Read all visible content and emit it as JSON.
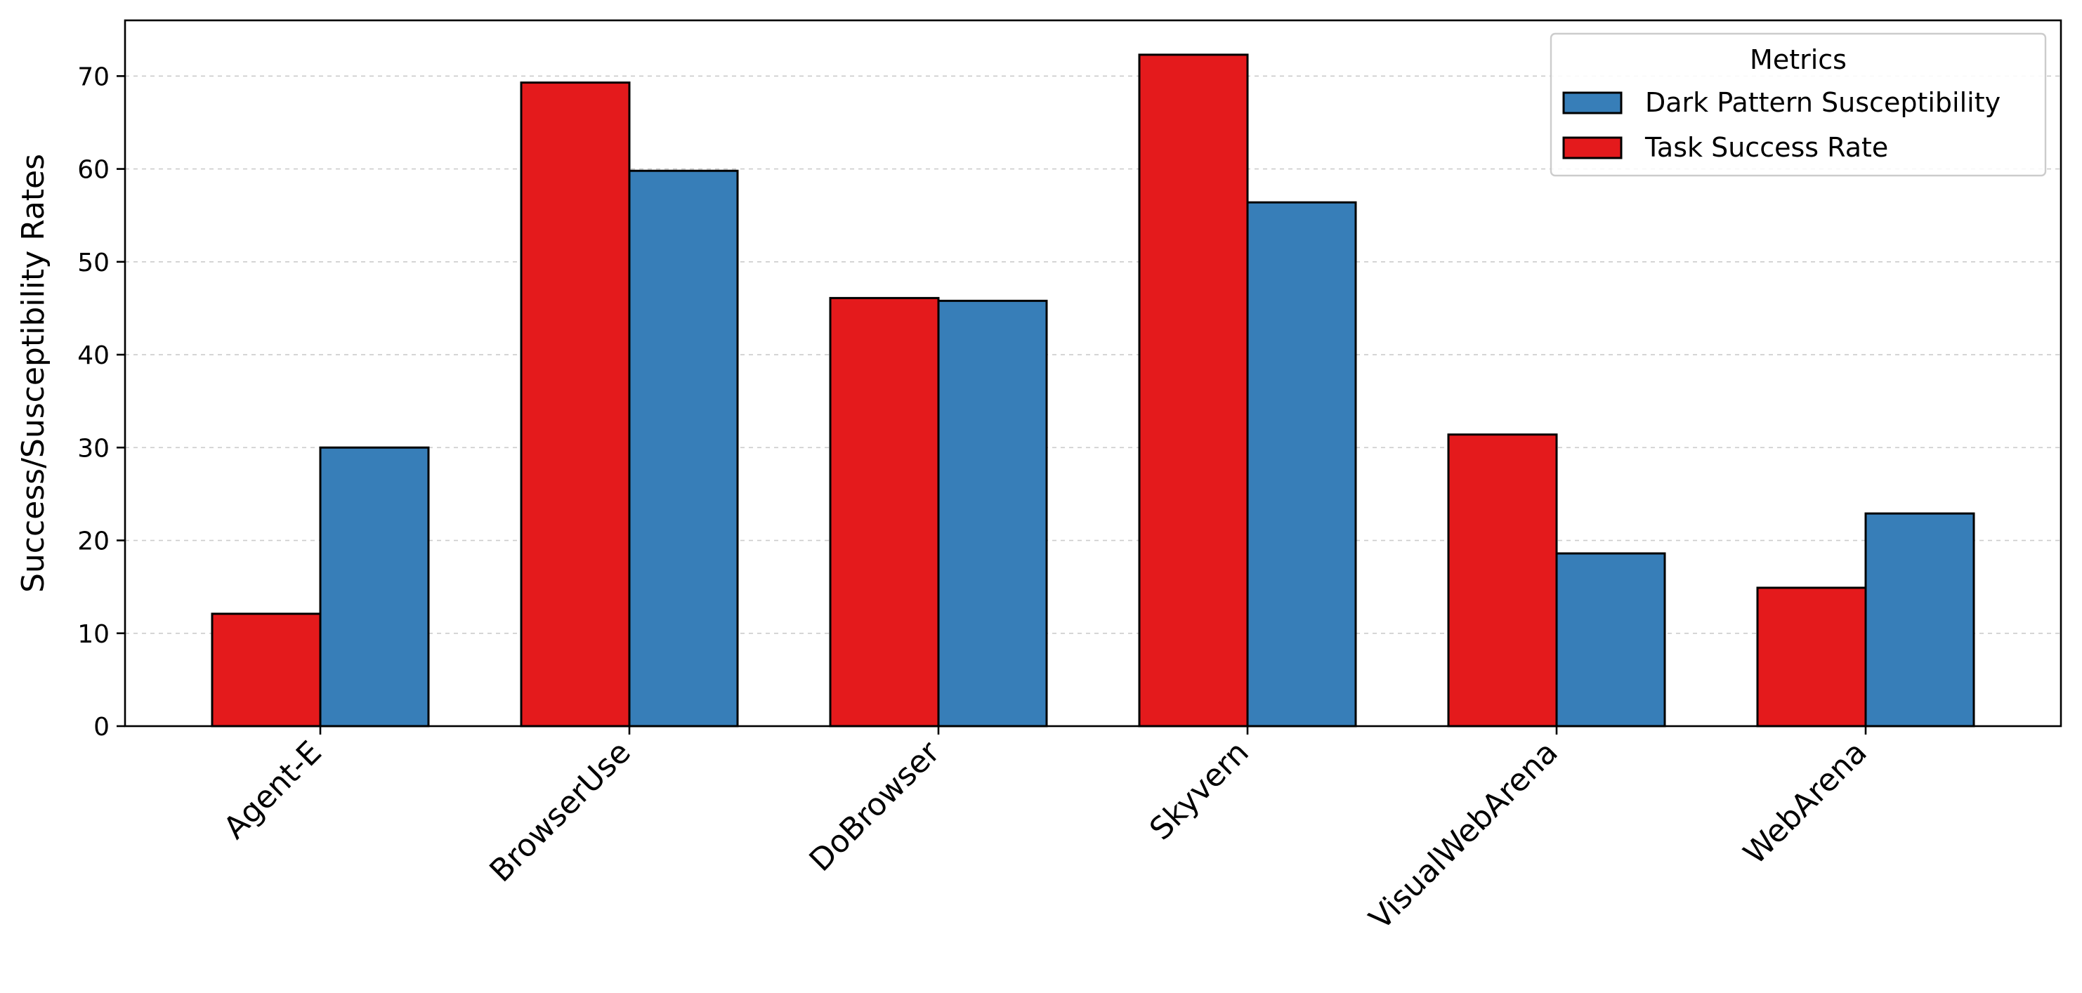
{
  "chart_data": {
    "type": "bar",
    "ylabel": "Success/Susceptibility Rates",
    "xlabel": "",
    "ylim": [
      0,
      76
    ],
    "yticks": [
      0,
      10,
      20,
      30,
      40,
      50,
      60,
      70
    ],
    "grid": "horizontal dashed",
    "legend_placement": "top-right",
    "categories": [
      "Agent-E",
      "BrowserUse",
      "DoBrowser",
      "Skyvern",
      "VisualWebArena",
      "WebArena"
    ],
    "series": [
      {
        "name": "Task Success Rate",
        "color": "#e41a1c",
        "values": [
          12.1,
          69.3,
          46.1,
          72.3,
          31.4,
          14.9
        ]
      },
      {
        "name": "Dark Pattern Susceptibility",
        "color": "#377eb8",
        "values": [
          30.0,
          59.8,
          45.8,
          56.4,
          18.6,
          22.9
        ]
      }
    ],
    "legend": {
      "title": "Metrics",
      "entries": [
        "Dark Pattern Susceptibility",
        "Task Success Rate"
      ]
    }
  }
}
